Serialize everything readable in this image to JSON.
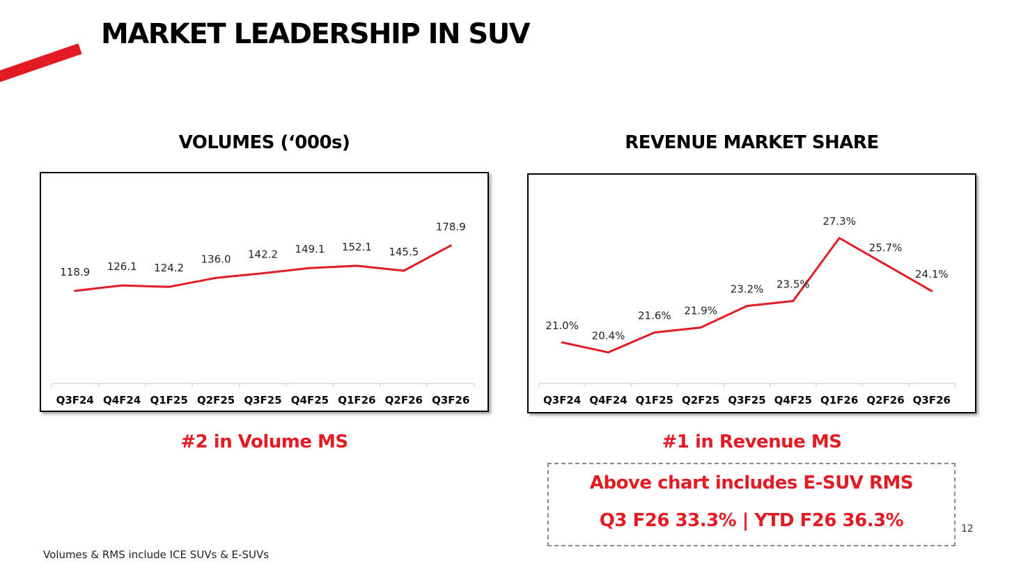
{
  "title": "MARKET LEADERSHIP IN SUV",
  "colors": {
    "accent": "#e31b23",
    "axis": "#d9d9d9"
  },
  "chart_data": [
    {
      "id": "volumes",
      "type": "line",
      "title": "VOLUMES (‘000s)",
      "categories": [
        "Q3F24",
        "Q4F24",
        "Q1F25",
        "Q2F25",
        "Q3F25",
        "Q4F25",
        "Q1F26",
        "Q2F26",
        "Q3F26"
      ],
      "values": [
        118.9,
        126.1,
        124.2,
        136.0,
        142.2,
        149.1,
        152.1,
        145.5,
        178.9
      ],
      "data_labels": [
        "118.9",
        "126.1",
        "124.2",
        "136.0",
        "142.2",
        "149.1",
        "152.1",
        "145.5",
        "178.9"
      ],
      "ylim": [
        0,
        210
      ],
      "xlabel": "",
      "ylabel": "",
      "grid": false,
      "legend": "none",
      "caption": "#2 in Volume MS"
    },
    {
      "id": "rms",
      "type": "line",
      "title": "REVENUE MARKET SHARE",
      "categories": [
        "Q3F24",
        "Q4F24",
        "Q1F25",
        "Q2F25",
        "Q3F25",
        "Q4F25",
        "Q1F26",
        "Q2F26",
        "Q3F26"
      ],
      "values": [
        21.0,
        20.4,
        21.6,
        21.9,
        23.2,
        23.5,
        27.3,
        25.7,
        24.1
      ],
      "data_labels": [
        "21.0%",
        "20.4%",
        "21.6%",
        "21.9%",
        "23.2%",
        "23.5%",
        "27.3%",
        "25.7%",
        "24.1%"
      ],
      "ylim": [
        15.5,
        28.6
      ],
      "xlabel": "",
      "ylabel": "",
      "grid": false,
      "legend": "none",
      "caption": "#1 in Revenue MS"
    }
  ],
  "note": {
    "line1": "Above chart includes E-SUV RMS",
    "line2": "Q3 F26 33.3% | YTD F26 36.3%"
  },
  "page_number": "12",
  "footnote": "Volumes & RMS include ICE SUVs & E-SUVs"
}
